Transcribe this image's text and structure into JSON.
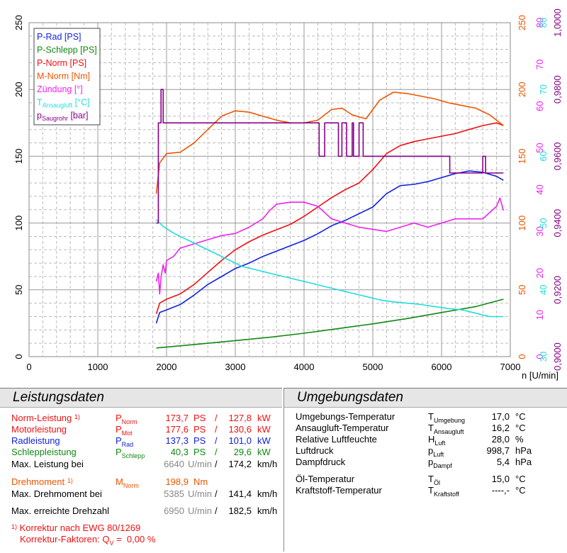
{
  "chart_data": {
    "type": "line",
    "xlabel": "n [U/min]",
    "xlim": [
      0,
      7000
    ],
    "x_ticks": [
      "0",
      "1000",
      "2000",
      "3000",
      "4000",
      "5000",
      "6000",
      "7000"
    ],
    "axes": {
      "left_ps": {
        "range": [
          0,
          250
        ],
        "ticks": [
          "0",
          "50",
          "100",
          "150",
          "200",
          "250"
        ]
      },
      "nm": {
        "range": [
          0,
          250
        ],
        "ticks": [
          "0",
          "50",
          "100",
          "150",
          "200",
          "250"
        ],
        "color": "#ee5500"
      },
      "deg": {
        "range": [
          0,
          80
        ],
        "ticks": [
          "0",
          "10",
          "20",
          "30",
          "40",
          "50",
          "60",
          "70",
          "80"
        ],
        "color": "#ee22ee"
      },
      "degc": {
        "range": [
          30,
          80
        ],
        "ticks": [
          "30",
          "40",
          "50",
          "60",
          "70",
          "80"
        ],
        "color": "#22dddd"
      },
      "bar": {
        "range": [
          0.9,
          1.0
        ],
        "ticks": [
          "0,9000",
          "0,9200",
          "0,9400",
          "0,9600",
          "0,9800",
          "1,0000"
        ],
        "color": "#880088"
      }
    },
    "legend": [
      "P-Rad [PS]",
      "P-Schlepp [PS]",
      "P-Norm [PS]",
      "M-Norm [Nm]",
      "Zündung [°]",
      "T_Ansaugluft [°C]",
      "p_Saugrohr [bar]"
    ],
    "series": [
      {
        "name": "P-Rad [PS]",
        "axis": "left_ps",
        "color": "#1122dd",
        "x": [
          1850,
          1900,
          2000,
          2200,
          2400,
          2600,
          2800,
          3000,
          3200,
          3400,
          3600,
          3800,
          4000,
          4200,
          4400,
          4600,
          4800,
          5000,
          5200,
          5400,
          5600,
          5800,
          6000,
          6200,
          6400,
          6600,
          6800,
          6900
        ],
        "y": [
          25,
          33,
          35,
          39,
          46,
          54,
          60,
          66,
          70,
          75,
          79,
          83,
          87,
          92,
          98,
          102,
          107,
          112,
          122,
          128,
          129,
          131,
          134,
          137,
          139,
          138,
          135,
          132
        ]
      },
      {
        "name": "P-Schlepp [PS]",
        "axis": "left_ps",
        "color": "#118811",
        "x": [
          1850,
          2500,
          3000,
          3500,
          4000,
          4500,
          5000,
          5500,
          6000,
          6500,
          6900
        ],
        "y": [
          6.5,
          9.5,
          12,
          14.5,
          17.5,
          21,
          24.5,
          28.5,
          33,
          37.5,
          43
        ]
      },
      {
        "name": "P-Norm [PS]",
        "axis": "left_ps",
        "color": "#ee1111",
        "x": [
          1850,
          1900,
          2000,
          2200,
          2400,
          2600,
          2800,
          3000,
          3200,
          3400,
          3600,
          3800,
          4000,
          4200,
          4400,
          4600,
          4800,
          5000,
          5200,
          5400,
          5600,
          5800,
          6000,
          6200,
          6400,
          6600,
          6800,
          6900
        ],
        "y": [
          32,
          40,
          43,
          47,
          54,
          63,
          72,
          80,
          86,
          91,
          95,
          99,
          105,
          112,
          119,
          125,
          130,
          140,
          152,
          158,
          161,
          163,
          165,
          167,
          170,
          173,
          175,
          173
        ]
      },
      {
        "name": "M-Norm [Nm]",
        "axis": "nm",
        "color": "#ee5500",
        "x": [
          1850,
          1900,
          2000,
          2200,
          2400,
          2600,
          2800,
          3000,
          3200,
          3400,
          3600,
          3800,
          4000,
          4200,
          4400,
          4550,
          4700,
          4900,
          5100,
          5300,
          5500,
          5700,
          5900,
          6100,
          6300,
          6500,
          6700,
          6900
        ],
        "y": [
          122,
          145,
          152,
          153,
          160,
          170,
          180,
          184,
          183,
          180,
          177,
          175,
          175,
          177,
          185,
          186,
          181,
          178,
          192,
          198,
          197,
          195,
          193,
          190,
          188,
          186,
          181,
          173
        ]
      },
      {
        "name": "Zündung [°]",
        "axis": "deg",
        "color": "#ee22ee",
        "x": [
          1850,
          1880,
          1900,
          1920,
          1950,
          1980,
          2000,
          2100,
          2200,
          2400,
          2600,
          2800,
          3000,
          3200,
          3400,
          3500,
          3600,
          3800,
          4000,
          4200,
          4400,
          4600,
          4800,
          5000,
          5200,
          5400,
          5600,
          5800,
          6000,
          6200,
          6400,
          6600,
          6800,
          6850,
          6900
        ],
        "y": [
          18,
          20,
          15,
          19,
          22,
          20,
          23,
          24,
          26,
          27,
          28,
          29,
          29.5,
          31,
          33,
          35,
          36.5,
          37,
          37,
          36,
          33,
          32,
          31,
          30.5,
          30,
          31,
          32,
          31,
          32,
          33,
          33,
          33,
          36,
          38,
          35
        ]
      },
      {
        "name": "T_Ansaugluft [°C]",
        "axis": "degc",
        "color": "#22dddd",
        "x": [
          1850,
          1950,
          2100,
          2300,
          2500,
          2700,
          2900,
          3100,
          3300,
          3500,
          3700,
          3900,
          4100,
          4300,
          4500,
          4700,
          4900,
          5100,
          5300,
          5500,
          5700,
          5900,
          6100,
          6300,
          6500,
          6700,
          6900
        ],
        "y": [
          50.5,
          49.5,
          48.5,
          47.5,
          46.5,
          45.5,
          44.5,
          43.5,
          43,
          42.5,
          42,
          41.5,
          41,
          40.5,
          40,
          39.5,
          39,
          38.5,
          38.2,
          38,
          37.8,
          37.5,
          37.2,
          37,
          36.5,
          36,
          36
        ]
      },
      {
        "name": "p_Saugrohr [bar]",
        "axis": "bar",
        "color": "#880088",
        "x": [
          1850,
          1880,
          1880,
          1920,
          1920,
          1950,
          1950,
          4220,
          4220,
          4300,
          4300,
          4500,
          4500,
          4550,
          4550,
          4620,
          4620,
          4700,
          4700,
          4720,
          4720,
          4800,
          4800,
          4860,
          4860,
          5000,
          5000,
          6120,
          6120,
          6600,
          6600,
          6640,
          6640,
          6700,
          6700,
          6900
        ],
        "y": [
          0.94,
          0.94,
          0.97,
          0.97,
          0.98,
          0.98,
          0.97,
          0.97,
          0.96,
          0.96,
          0.97,
          0.97,
          0.96,
          0.96,
          0.97,
          0.97,
          0.96,
          0.96,
          0.97,
          0.97,
          0.96,
          0.96,
          0.97,
          0.97,
          0.96,
          0.96,
          0.96,
          0.96,
          0.955,
          0.955,
          0.96,
          0.96,
          0.955,
          0.955,
          0.955,
          0.955
        ]
      }
    ]
  },
  "leistung": {
    "title": "Leistungsdaten",
    "norm": {
      "label": "Norm-Leistung",
      "sup": "1)",
      "sym": "P",
      "sub": "Norm",
      "ps": "173,7",
      "ps_unit": "PS",
      "slash": "/",
      "kw": "127,8",
      "kw_unit": "kW"
    },
    "motor": {
      "label": "Motorleistung",
      "sym": "P",
      "sub": "Mot",
      "ps": "177,6",
      "ps_unit": "PS",
      "slash": "/",
      "kw": "130,6",
      "kw_unit": "kW"
    },
    "rad": {
      "label": "Radleistung",
      "sym": "P",
      "sub": "Rad",
      "ps": "137,3",
      "ps_unit": "PS",
      "slash": "/",
      "kw": "101,0",
      "kw_unit": "kW"
    },
    "schlepp": {
      "label": "Schleppleistung",
      "sym": "P",
      "sub": "Schlepp",
      "ps": "40,3",
      "ps_unit": "PS",
      "slash": "/",
      "kw": "29,6",
      "kw_unit": "kW"
    },
    "maxl": {
      "label": "Max. Leistung bei",
      "rpm": "6640",
      "rpm_unit": "U/min",
      "slash": "/",
      "speed": "174,2",
      "speed_unit": "km/h"
    },
    "dreh": {
      "label": "Drehmoment",
      "sup": "1)",
      "sym": "M",
      "sub": "Norm",
      "val": "198,9",
      "unit": "Nm"
    },
    "maxd": {
      "label": "Max. Drehmoment bei",
      "rpm": "5385",
      "rpm_unit": "U/min",
      "slash": "/",
      "speed": "141,4",
      "speed_unit": "km/h"
    },
    "maxn": {
      "label": "Max. erreichte Drehzahl",
      "rpm": "6950",
      "rpm_unit": "U/min",
      "slash": "/",
      "speed": "182,5",
      "speed_unit": "km/h"
    },
    "foot1": {
      "sup": "1)",
      "text": "Korrektur nach EWG 80/1269"
    },
    "foot2": {
      "text": "Korrektur-Faktoren: Q",
      "sub": "V",
      "eq": "=",
      "val": "0,00 %"
    }
  },
  "umgebung": {
    "title": "Umgebungsdaten",
    "rows": [
      {
        "label": "Umgebungs-Temperatur",
        "sym": "T",
        "sub": "Umgebung",
        "val": "17,0",
        "unit": "°C"
      },
      {
        "label": "Ansaugluft-Temperatur",
        "sym": "T",
        "sub": "Ansaugluft",
        "val": "16,2",
        "unit": "°C"
      },
      {
        "label": "Relative Luftfeuchte",
        "sym": "H",
        "sub": "Luft",
        "val": "28,0",
        "unit": "%"
      },
      {
        "label": "Luftdruck",
        "sym": "p",
        "sub": "Luft",
        "val": "998,7",
        "unit": "hPa"
      },
      {
        "label": "Dampfdruck",
        "sym": "p",
        "sub": "Dampf",
        "val": "5,4",
        "unit": "hPa"
      },
      {
        "label": "Öl-Temperatur",
        "sym": "T",
        "sub": "Öl",
        "val": "15,0",
        "unit": "°C"
      },
      {
        "label": "Kraftstoff-Temperatur",
        "sym": "T",
        "sub": "Kraftstoff",
        "val": "----,-",
        "unit": "°C"
      }
    ]
  }
}
